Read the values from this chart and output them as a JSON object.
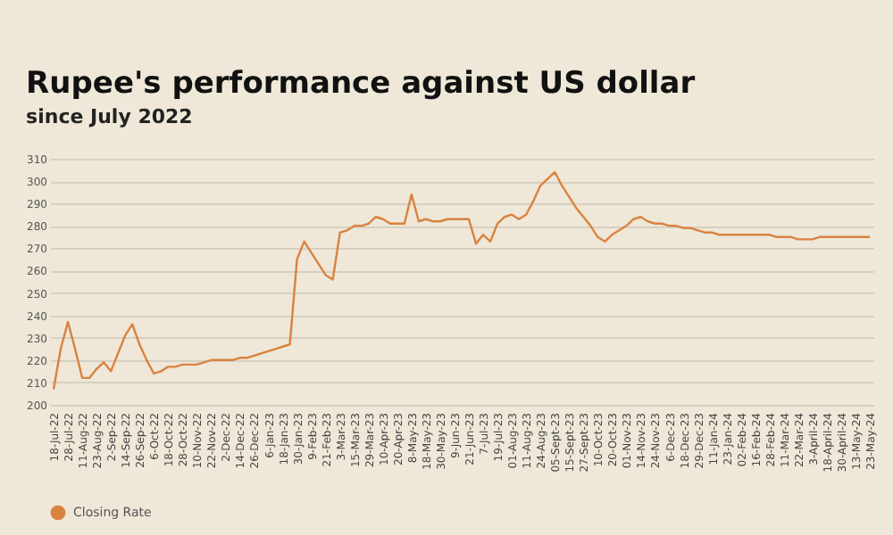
{
  "chart_data": {
    "type": "line",
    "title": "Rupee's performance against US dollar",
    "subtitle": "since July 2022",
    "categories": [
      "18-Jul-22",
      null,
      "28-Jul-22",
      null,
      "11-Aug-22",
      null,
      "23-Aug-22",
      null,
      "2-Sep-22",
      null,
      "14-Sep-22",
      null,
      "26-Sep-22",
      null,
      "6-Oct-22",
      null,
      "18-Oct-22",
      null,
      "28-Oct-22",
      null,
      "10-Nov-22",
      null,
      "22-Nov-22",
      null,
      "2-Dec-22",
      null,
      "14-Dec-22",
      null,
      "26-Dec-22",
      null,
      "6-Jan-23",
      null,
      "18-Jan-23",
      null,
      "30-Jan-23",
      null,
      "9-Feb-23",
      null,
      "21-Feb-23",
      null,
      "3-Mar-23",
      null,
      "15-Mar-23",
      null,
      "29-Mar-23",
      null,
      "10-Apr-23",
      null,
      "20-Apr-23",
      null,
      "8-May-23",
      null,
      "18-May-23",
      null,
      "30-May-23",
      null,
      "9-Jun-23",
      null,
      "21-Jun-23",
      null,
      "7-Jul-23",
      null,
      "19-Jul-23",
      null,
      "01-Aug-23",
      null,
      "11-Aug-23",
      null,
      "24-Aug-23",
      null,
      "05-Sept-23",
      null,
      "15-Sept-23",
      null,
      "27-Sept-23",
      null,
      "10-Oct-23",
      null,
      "20-Oct-23",
      null,
      "01-Nov-23",
      null,
      "14-Nov-23",
      null,
      "24-Nov-23",
      null,
      "6-Dec-23",
      null,
      "18-Dec-23",
      null,
      "29-Dec-23",
      null,
      "11-Jan-24",
      null,
      "23-Jan-24",
      null,
      "02-Feb-24",
      null,
      "16-Feb-24",
      null,
      "28-Feb-24",
      null,
      "11-Mar-24",
      null,
      "22-Mar-24",
      null,
      "3-April-24",
      null,
      "18-April-24",
      null,
      "30-April-24",
      null,
      "13-May-24",
      null,
      "23-May-24"
    ],
    "series": [
      {
        "name": "Closing Rate",
        "color": "#d9833f",
        "values": [
          207,
          225,
          237,
          225,
          212,
          212,
          216,
          219,
          215,
          223,
          231,
          236,
          227,
          220,
          214,
          215,
          217,
          217,
          218,
          218,
          218,
          219,
          220,
          220,
          220,
          220,
          221,
          221,
          222,
          223,
          224,
          225,
          226,
          227,
          265,
          273,
          268,
          263,
          258,
          256,
          277,
          278,
          280,
          280,
          281,
          284,
          283,
          281,
          281,
          281,
          294,
          282,
          283,
          282,
          282,
          283,
          283,
          283,
          283,
          272,
          276,
          273,
          281,
          284,
          285,
          283,
          285,
          291,
          298,
          301,
          304,
          298,
          293,
          288,
          284,
          280,
          275,
          273,
          276,
          278,
          280,
          283,
          284,
          282,
          281,
          281,
          280,
          280,
          279,
          279,
          278,
          277,
          277,
          276,
          276,
          276,
          276,
          276,
          276,
          276,
          276,
          275,
          275,
          275,
          274,
          274,
          274,
          275,
          275,
          275,
          275,
          275,
          275,
          275,
          275
        ]
      }
    ],
    "ylim": [
      200,
      310
    ],
    "yticks": [
      200,
      210,
      220,
      230,
      240,
      250,
      260,
      270,
      280,
      290,
      300,
      310
    ],
    "grid": "y",
    "legend": "bottom"
  }
}
